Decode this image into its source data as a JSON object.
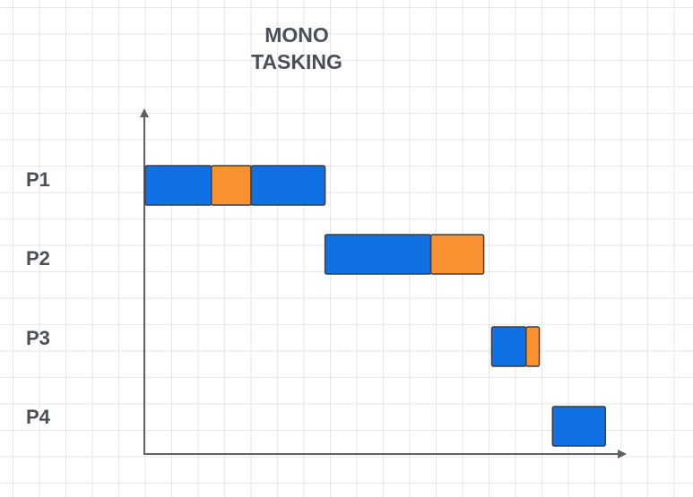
{
  "title": {
    "line1": "MONO",
    "line2": "TASKING"
  },
  "colors": {
    "cpu": "#1071e5",
    "io": "#fb9232",
    "axis": "#5f6168",
    "text": "#4a4f58",
    "outline": "#3a3d44"
  },
  "processes": [
    {
      "label": "P1",
      "segments": [
        {
          "kind": "cpu",
          "start": 0.0,
          "end": 1.25
        },
        {
          "kind": "io",
          "start": 1.25,
          "end": 2.0
        },
        {
          "kind": "cpu",
          "start": 2.0,
          "end": 3.4
        }
      ]
    },
    {
      "label": "P2",
      "segments": [
        {
          "kind": "cpu",
          "start": 3.4,
          "end": 5.4
        },
        {
          "kind": "io",
          "start": 5.4,
          "end": 6.4
        }
      ]
    },
    {
      "label": "P3",
      "segments": [
        {
          "kind": "cpu",
          "start": 6.55,
          "end": 7.2
        },
        {
          "kind": "io",
          "start": 7.2,
          "end": 7.45
        }
      ]
    },
    {
      "label": "P4",
      "segments": [
        {
          "kind": "cpu",
          "start": 7.7,
          "end": 8.7
        }
      ]
    }
  ]
}
